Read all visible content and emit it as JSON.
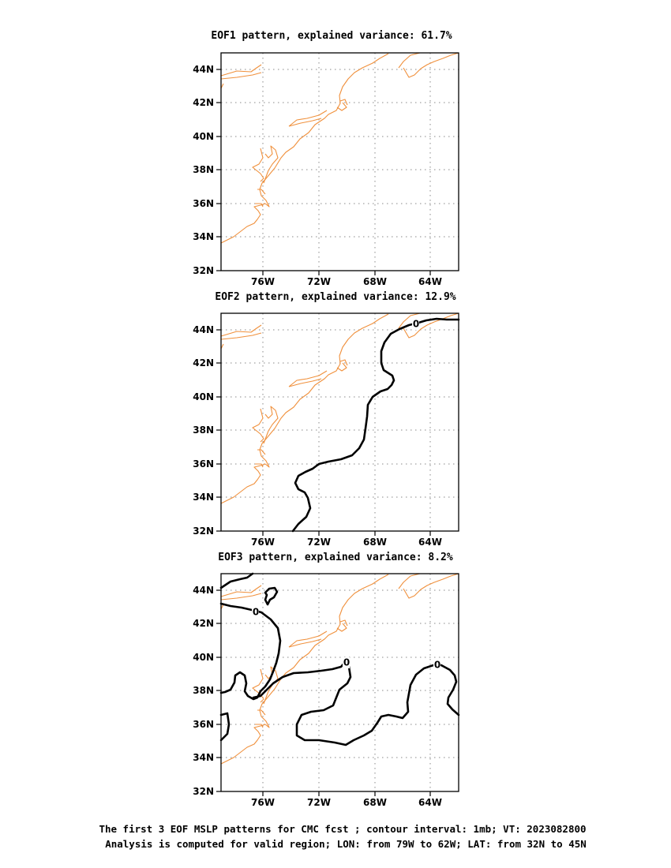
{
  "panels": [
    {
      "title": "EOF1 pattern, explained variance: 61.7%",
      "x_tick_labels": [
        "76W",
        "72W",
        "68W",
        "64W"
      ],
      "y_tick_labels": [
        "44N",
        "42N",
        "40N",
        "38N",
        "36N",
        "34N",
        "32N"
      ],
      "contour_labels": []
    },
    {
      "title": "EOF2 pattern, explained variance: 12.9%",
      "x_tick_labels": [
        "76W",
        "72W",
        "68W",
        "64W"
      ],
      "y_tick_labels": [
        "44N",
        "42N",
        "40N",
        "38N",
        "36N",
        "34N",
        "32N"
      ],
      "contour_labels": [
        "0"
      ]
    },
    {
      "title": "EOF3 pattern, explained variance: 8.2%",
      "x_tick_labels": [
        "76W",
        "72W",
        "68W",
        "64W"
      ],
      "y_tick_labels": [
        "44N",
        "42N",
        "40N",
        "38N",
        "36N",
        "34N",
        "32N"
      ],
      "contour_labels": [
        "0",
        "0",
        "0"
      ]
    }
  ],
  "caption": {
    "line1": "The first 3 EOF MSLP patterns for CMC fcst ; contour interval: 1mb; VT: 2023082800",
    "line2": "Analysis is computed for valid region; LON: from 79W to 62W; LAT: from 32N to 45N"
  },
  "colors": {
    "coastline": "#f0903c",
    "contour": "#000000",
    "gridline": "#888888"
  }
}
